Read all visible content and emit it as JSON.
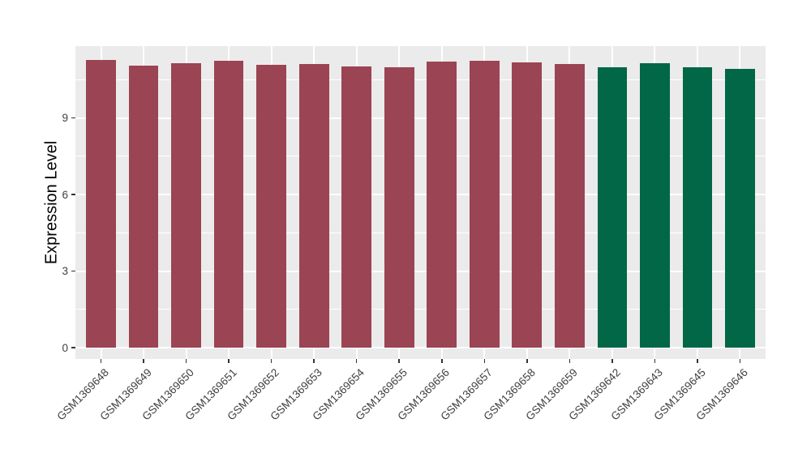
{
  "chart_data": {
    "type": "bar",
    "title": "",
    "xlabel": "",
    "ylabel": "Expression Level",
    "categories": [
      "GSM1369648",
      "GSM1369649",
      "GSM1369650",
      "GSM1369651",
      "GSM1369652",
      "GSM1369653",
      "GSM1369654",
      "GSM1369655",
      "GSM1369656",
      "GSM1369657",
      "GSM1369658",
      "GSM1369659",
      "GSM1369642",
      "GSM1369643",
      "GSM1369645",
      "GSM1369646"
    ],
    "values": [
      11.29,
      11.04,
      11.15,
      11.25,
      11.1,
      11.12,
      11.02,
      10.98,
      11.2,
      11.24,
      11.18,
      11.12,
      10.99,
      11.14,
      10.99,
      10.92
    ],
    "bar_colors": [
      "#9B4453",
      "#9B4453",
      "#9B4453",
      "#9B4453",
      "#9B4453",
      "#9B4453",
      "#9B4453",
      "#9B4453",
      "#9B4453",
      "#9B4453",
      "#9B4453",
      "#9B4453",
      "#016747",
      "#016747",
      "#016747",
      "#016747"
    ],
    "group_colors": {
      "red_group": "#9B4453",
      "green_group": "#016747"
    },
    "yticks": [
      0,
      3,
      6,
      9
    ],
    "ylim": [
      -0.45,
      11.82
    ],
    "grid": "on",
    "legend": "none",
    "panel_background": "#EBEBEB",
    "grid_color": "#FFFFFF",
    "tick_color": "#333333",
    "axis_text_color": "#404040"
  }
}
